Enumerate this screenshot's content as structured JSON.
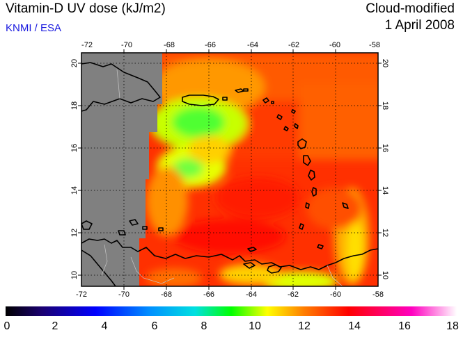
{
  "header": {
    "title": "Vitamin-D UV dose (kJ/m2)",
    "credit": "KNMI / ESA",
    "product": "Cloud-modified",
    "date": "1 April 2008"
  },
  "map": {
    "lon_range": [
      -72,
      -58
    ],
    "lat_range": [
      9.5,
      20.5
    ],
    "lon_ticks": [
      "-72",
      "-70",
      "-68",
      "-66",
      "-64",
      "-62",
      "-60",
      "-58"
    ],
    "lat_ticks": [
      "20",
      "18",
      "16",
      "14",
      "12",
      "10"
    ],
    "no_data_color": "#808080",
    "land_fill": "none",
    "grid": "dotted"
  },
  "colorbar": {
    "min": 0,
    "max": 18,
    "tick_labels": [
      "0",
      "2",
      "4",
      "6",
      "8",
      "10",
      "12",
      "14",
      "16",
      "18"
    ],
    "colors": [
      "#000000",
      "#1a0070",
      "#0000ff",
      "#0090ff",
      "#00e0e0",
      "#00ff00",
      "#ffff00",
      "#ff8000",
      "#ff0000",
      "#ff00c0",
      "#ffffff"
    ]
  }
}
